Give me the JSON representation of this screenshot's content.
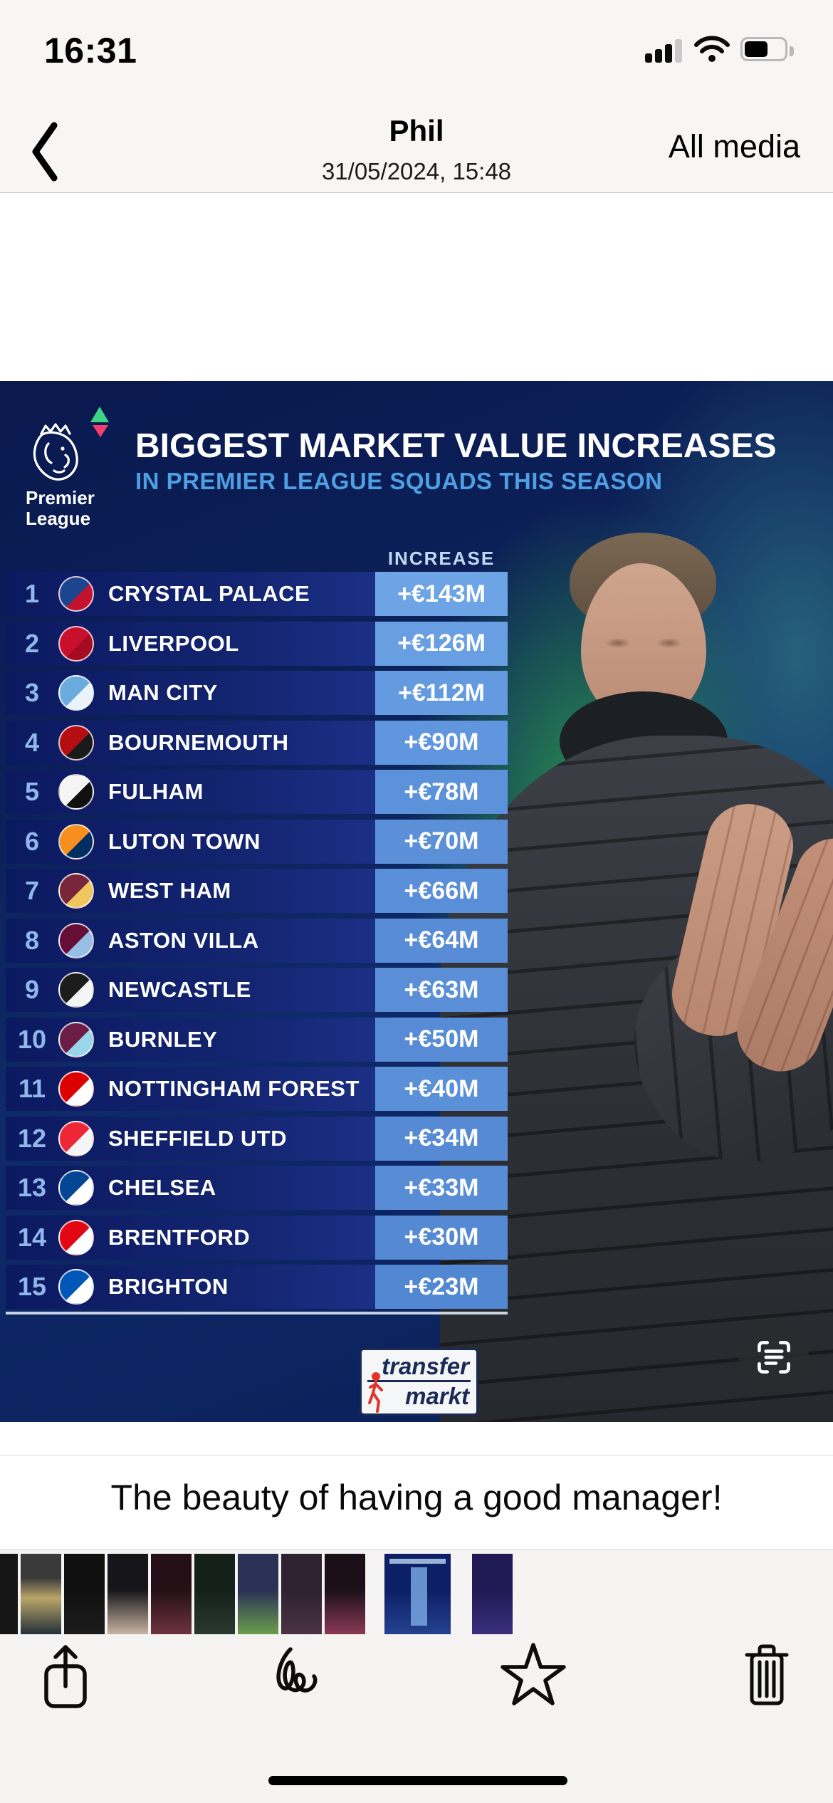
{
  "status_bar": {
    "time": "16:31",
    "signal_bars_filled": 3,
    "signal_bars_total": 4,
    "wifi": "full",
    "battery_percent": 55
  },
  "nav": {
    "back_icon": "chevron-left",
    "title": "Phil",
    "subtitle": "31/05/2024, 15:48",
    "action_label": "All media"
  },
  "infographic": {
    "brand": {
      "line1": "Premier",
      "line2": "League"
    },
    "accent_arrows": {
      "up_color": "#3fd483",
      "down_color": "#f43f6e"
    },
    "title": "BIGGEST MARKET VALUE INCREASES",
    "subtitle": "IN PREMIER LEAGUE SQUADS THIS SEASON",
    "column_header": "INCREASE",
    "colors": {
      "background_navy": "#0c2058",
      "photo_green": "#2e9e4a",
      "photo_teal": "#2a6c80",
      "row_navy_left": "#0b1960",
      "row_navy_right": "#1b2f85",
      "rank_blue": "#8fb7ec",
      "subtitle_blue": "#4f9fe3",
      "header_blue": "#c2d9f2"
    },
    "rows": [
      {
        "rank": "1",
        "team": "CRYSTAL PALACE",
        "value": "+€143M",
        "value_bg": "#6da4e6",
        "crest": [
          "#1b458f",
          "#c4122e"
        ]
      },
      {
        "rank": "2",
        "team": "LIVERPOOL",
        "value": "+€126M",
        "value_bg": "#689fe3",
        "crest": [
          "#c8102e",
          "#a50b23"
        ]
      },
      {
        "rank": "3",
        "team": "MAN CITY",
        "value": "+€112M",
        "value_bg": "#639ae0",
        "crest": [
          "#6cabdd",
          "#eaf3fa"
        ]
      },
      {
        "rank": "4",
        "team": "BOURNEMOUTH",
        "value": "+€90M",
        "value_bg": "#5f96dd",
        "crest": [
          "#b50e12",
          "#1a1a1a"
        ]
      },
      {
        "rank": "5",
        "team": "FULHAM",
        "value": "+€78M",
        "value_bg": "#5c92da",
        "crest": [
          "#f5f5f5",
          "#111111"
        ]
      },
      {
        "rank": "6",
        "team": "LUTON TOWN",
        "value": "+€70M",
        "value_bg": "#5b90d9",
        "crest": [
          "#f78f1e",
          "#002d62"
        ]
      },
      {
        "rank": "7",
        "team": "WEST HAM",
        "value": "+€66M",
        "value_bg": "#598ed8",
        "crest": [
          "#7a263a",
          "#f0c75e"
        ]
      },
      {
        "rank": "8",
        "team": "ASTON VILLA",
        "value": "+€64M",
        "value_bg": "#588cd6",
        "crest": [
          "#670e36",
          "#95bfe5"
        ]
      },
      {
        "rank": "9",
        "team": "NEWCASTLE",
        "value": "+€63M",
        "value_bg": "#5a8fd8",
        "crest": [
          "#1c1c1c",
          "#f5f5f5"
        ]
      },
      {
        "rank": "10",
        "team": "BURNLEY",
        "value": "+€50M",
        "value_bg": "#578bd5",
        "crest": [
          "#6c1d45",
          "#99d6ea"
        ]
      },
      {
        "rank": "11",
        "team": "NOTTINGHAM FOREST",
        "value": "+€40M",
        "value_bg": "#5990d8",
        "crest": [
          "#dd0000",
          "#ffffff"
        ]
      },
      {
        "rank": "12",
        "team": "SHEFFIELD UTD",
        "value": "+€34M",
        "value_bg": "#568ad4",
        "crest": [
          "#ee2737",
          "#f5f5f5"
        ]
      },
      {
        "rank": "13",
        "team": "CHELSEA",
        "value": "+€33M",
        "value_bg": "#588dd6",
        "crest": [
          "#034694",
          "#ffffff"
        ]
      },
      {
        "rank": "14",
        "team": "BRENTFORD",
        "value": "+€30M",
        "value_bg": "#5589d3",
        "crest": [
          "#e30613",
          "#ffffff"
        ]
      },
      {
        "rank": "15",
        "team": "BRIGHTON",
        "value": "+€23M",
        "value_bg": "#5288d2",
        "crest": [
          "#0057b8",
          "#ffffff"
        ]
      }
    ],
    "source_logo": {
      "line1": "transfer",
      "line2": "markt",
      "color": "#1b2a55",
      "figure_color": "#e2342c"
    },
    "live_text_button": "live-text-scan"
  },
  "caption": {
    "text": "The beauty of having a good manager!"
  },
  "thumbnails": [
    {
      "kind": "dark-clip",
      "colors": [
        "#161616"
      ],
      "narrow": true
    },
    {
      "kind": "player-yellow-photo",
      "colors": [
        "#3a3a3a",
        "#b9a66a",
        "#24303a"
      ]
    },
    {
      "kind": "dark-text-post",
      "colors": [
        "#101010",
        "#1c1c1c"
      ]
    },
    {
      "kind": "portrait-photo",
      "colors": [
        "#15151a",
        "#c9b4a2"
      ]
    },
    {
      "kind": "red-blur-photo",
      "colors": [
        "#241016",
        "#6e3340"
      ]
    },
    {
      "kind": "dark-green-photo",
      "colors": [
        "#15201b",
        "#2a3a30"
      ]
    },
    {
      "kind": "team-grass-photo",
      "colors": [
        "#2a3156",
        "#6a9e4c"
      ]
    },
    {
      "kind": "purple-blur-photo",
      "colors": [
        "#2e2230",
        "#4a3343"
      ]
    },
    {
      "kind": "pink-dark-photo",
      "colors": [
        "#1c1018",
        "#8a3a55"
      ]
    },
    {
      "kind": "current-infographic",
      "colors": [
        "#0d1f66",
        "#24418f"
      ],
      "selected": true
    },
    {
      "kind": "purple-infographic",
      "colors": [
        "#201a55",
        "#3a2f7e"
      ]
    }
  ],
  "toolbar": {
    "icons": [
      "share",
      "markup",
      "favorite",
      "delete"
    ]
  }
}
